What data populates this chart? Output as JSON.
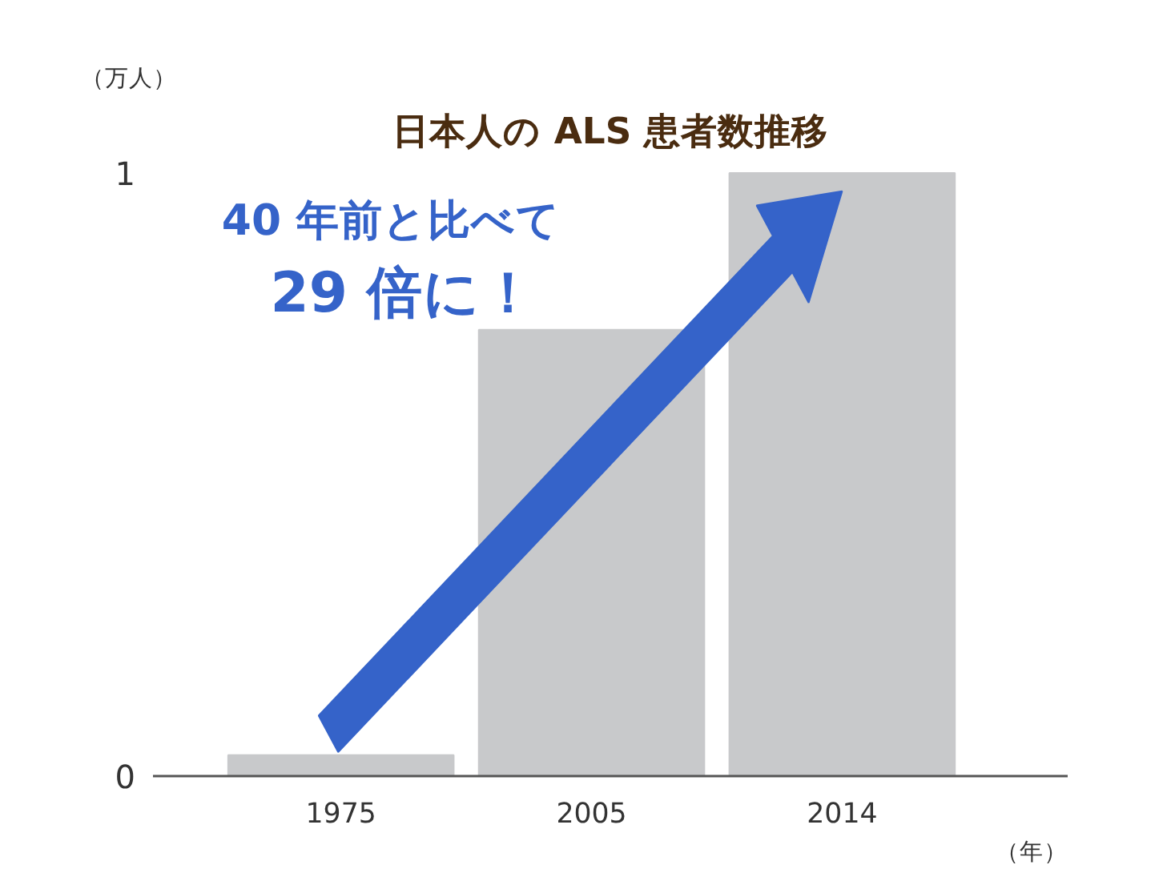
{
  "chart_data": {
    "type": "bar",
    "title": "日本人の ALS 患者数推移",
    "ylabel": "（万人）",
    "xlabel": "（年）",
    "categories": [
      "1975",
      "2005",
      "2014"
    ],
    "values": [
      0.035,
      0.74,
      1.0
    ],
    "color": "#c8c9cb",
    "ylim": [
      0,
      1
    ],
    "yticks": [
      0,
      1
    ],
    "grid": false,
    "annotations": [
      "40 年前と比べて",
      "29 倍に！"
    ]
  }
}
